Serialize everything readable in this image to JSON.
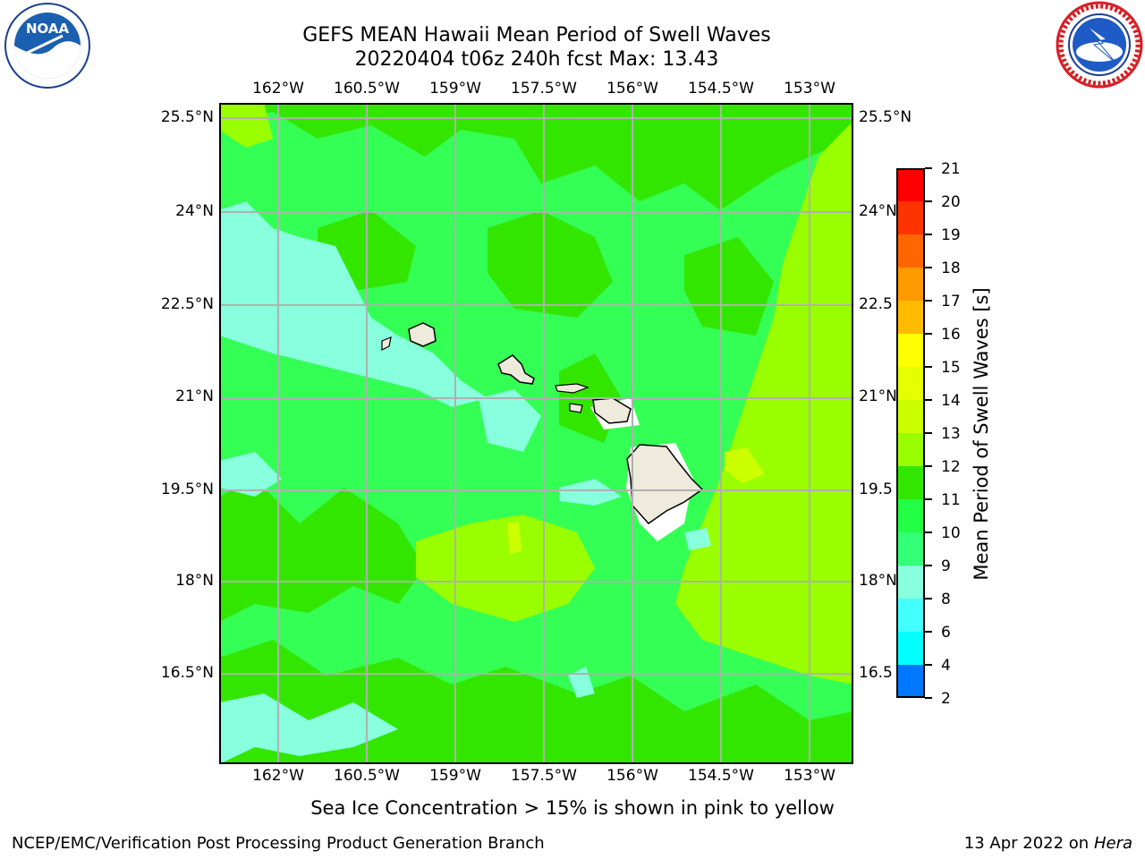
{
  "header": {
    "title_line1": "GEFS MEAN Hawaii Mean Period of Swell Waves",
    "title_line2": "20220404 t06z 240h fcst   Max: 13.43"
  },
  "logos": {
    "left": {
      "text": "NOAA",
      "icon": "noaa-logo-icon"
    },
    "right": {
      "icon": "nws-logo-icon"
    }
  },
  "map": {
    "lon_labels": [
      "162°W",
      "160.5°W",
      "159°W",
      "157.5°W",
      "156°W",
      "154.5°W",
      "153°W"
    ],
    "lat_labels_left": [
      "25.5°N",
      "24°N",
      "22.5°N",
      "21°N",
      "19.5°N",
      "18°N",
      "16.5°N"
    ],
    "lat_labels_right": [
      "25.5°N",
      "24°N",
      "22.5",
      "21°N",
      "19.5",
      "18°N",
      "16.5"
    ]
  },
  "colorbar": {
    "label": "Mean Period of Swell Waves [s]",
    "ticks": [
      "21",
      "20",
      "19",
      "18",
      "17",
      "16",
      "15",
      "14",
      "13",
      "12",
      "11",
      "10",
      "9",
      "8",
      "6",
      "4",
      "2"
    ],
    "colors": [
      "#ff0000",
      "#ff3300",
      "#ff6600",
      "#ff9900",
      "#ffbb00",
      "#ffff00",
      "#e6ff00",
      "#ccff00",
      "#99ff00",
      "#33e600",
      "#22ff44",
      "#33ff77",
      "#88ffdd",
      "#44ffff",
      "#00ffff",
      "#0077ff",
      "#0000ff"
    ]
  },
  "footnote": "Sea Ice Concentration > 15% is shown in pink to yellow",
  "footer": {
    "left": "NCEP/EMC/Verification Post Processing Product Generation Branch",
    "right_date": "13 Apr 2022 on ",
    "right_host": "Hera"
  }
}
